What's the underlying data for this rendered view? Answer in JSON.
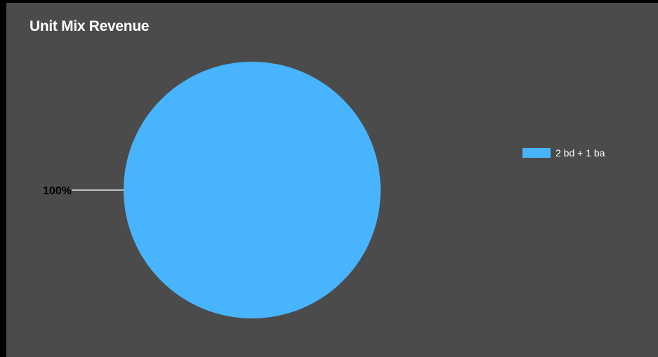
{
  "chart_data": {
    "type": "pie",
    "title": "Unit Mix Revenue",
    "slices": [
      {
        "label": "2  bd + 1 ba",
        "value": 100,
        "display": "100%",
        "color": "#48b4fe"
      }
    ],
    "legend_position": "right",
    "background_color": "#4b4b4b"
  }
}
